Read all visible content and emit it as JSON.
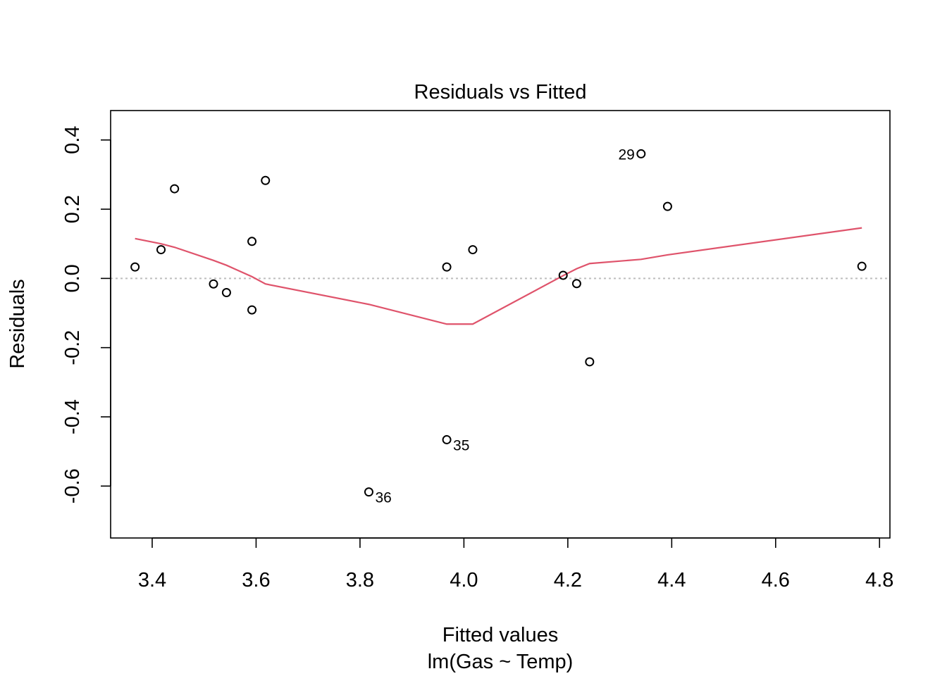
{
  "colors": {
    "points": "#000000",
    "smooth_line": "#DF536B",
    "zero_line": "#BEBEBE",
    "frame": "#000000"
  },
  "chart_data": {
    "type": "scatter",
    "title": "Residuals vs Fitted",
    "xlabel": "Fitted values",
    "subtitle": "lm(Gas ~ Temp)",
    "ylabel": "Residuals",
    "xlim": [
      3.32,
      4.82
    ],
    "ylim": [
      -0.75,
      0.485
    ],
    "x_ticks": [
      3.4,
      3.6,
      3.8,
      4.0,
      4.2,
      4.4,
      4.6,
      4.8
    ],
    "x_tick_labels": [
      "3.4",
      "3.6",
      "3.8",
      "4.0",
      "4.2",
      "4.4",
      "4.6",
      "4.8"
    ],
    "y_ticks": [
      0.4,
      0.2,
      0.0,
      -0.2,
      -0.4,
      -0.6
    ],
    "y_tick_labels": [
      "0.4",
      "0.2",
      "0.0",
      "-0.2",
      "-0.4",
      "-0.6"
    ],
    "reference_line_y": 0,
    "grid": false,
    "points": [
      {
        "x": 3.367,
        "y": 0.033
      },
      {
        "x": 3.417,
        "y": 0.083
      },
      {
        "x": 3.443,
        "y": 0.259
      },
      {
        "x": 3.518,
        "y": -0.016
      },
      {
        "x": 3.543,
        "y": -0.041
      },
      {
        "x": 3.592,
        "y": 0.107
      },
      {
        "x": 3.592,
        "y": -0.091
      },
      {
        "x": 3.618,
        "y": 0.283
      },
      {
        "x": 3.817,
        "y": -0.617,
        "label": "36",
        "label_pos": "below-right"
      },
      {
        "x": 3.967,
        "y": 0.033
      },
      {
        "x": 3.967,
        "y": -0.466,
        "label": "35",
        "label_pos": "below-right"
      },
      {
        "x": 4.017,
        "y": 0.083
      },
      {
        "x": 4.191,
        "y": 0.009
      },
      {
        "x": 4.217,
        "y": -0.015
      },
      {
        "x": 4.242,
        "y": -0.241
      },
      {
        "x": 4.341,
        "y": 0.36,
        "label": "29",
        "label_pos": "left"
      },
      {
        "x": 4.392,
        "y": 0.208
      },
      {
        "x": 4.766,
        "y": 0.035
      }
    ],
    "smooth_line": {
      "x": [
        3.367,
        3.417,
        3.443,
        3.518,
        3.543,
        3.592,
        3.618,
        3.817,
        3.967,
        4.017,
        4.191,
        4.217,
        4.242,
        4.341,
        4.392,
        4.766
      ],
      "y": [
        0.115,
        0.1,
        0.09,
        0.052,
        0.038,
        0.005,
        -0.016,
        -0.075,
        -0.132,
        -0.132,
        0.008,
        0.028,
        0.043,
        0.055,
        0.068,
        0.146
      ]
    }
  }
}
